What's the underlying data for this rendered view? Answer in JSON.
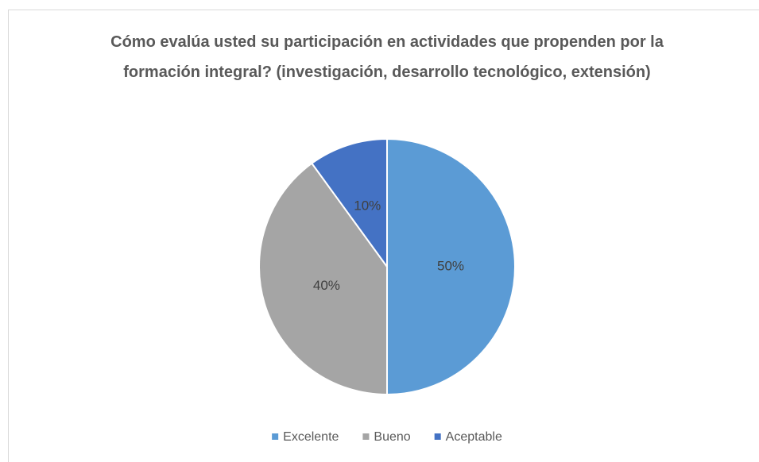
{
  "chart_data": {
    "type": "pie",
    "title": "Cómo evalúa usted su participación en actividades que propenden por la formación integral? (investigación, desarrollo tecnológico, extensión)",
    "categories": [
      "Excelente",
      "Bueno",
      "Aceptable"
    ],
    "values": [
      50,
      40,
      10
    ],
    "value_labels": [
      "50%",
      "40%",
      "10%"
    ],
    "colors": [
      "#5b9bd5",
      "#a5a5a5",
      "#4472c4"
    ],
    "legend": "bottom"
  }
}
